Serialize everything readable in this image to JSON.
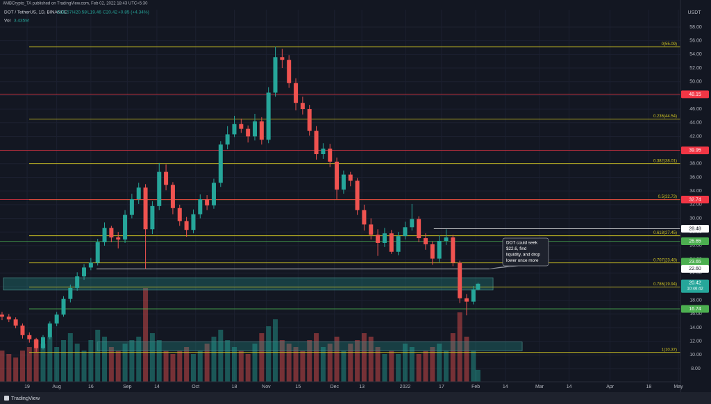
{
  "header": {
    "published": "AMBCrypto_TA published on TradingView.com, Feb 02, 2022 18:43 UTC+5:30",
    "symbol": "DOT / TetherUS, 1D, BINANCE",
    "ohlc_labels": [
      "O19.57",
      "H20.58",
      "L19.46",
      "C20.42"
    ],
    "change": "+0.85 (+4.34%)",
    "volume_name": "Vol",
    "currency": "USDT"
  },
  "chart_data": {
    "type": "candlestick",
    "up_color": "#26a69a",
    "down_color": "#ef5350",
    "x": [
      -11,
      -8,
      -5,
      -2,
      1,
      4,
      7,
      10,
      13,
      16,
      19,
      22,
      25,
      28,
      31,
      34,
      37,
      40,
      43,
      46,
      49,
      52,
      55,
      58,
      61,
      64,
      67,
      70,
      73,
      76,
      79,
      82,
      85,
      88,
      91,
      94,
      97,
      100,
      103,
      106,
      109,
      112,
      115,
      118,
      121,
      124,
      127,
      130,
      133,
      136,
      139,
      142,
      145,
      148,
      151,
      154,
      157,
      160,
      163,
      166,
      169,
      172,
      175,
      178,
      181,
      184,
      187,
      190,
      193,
      196,
      198
    ],
    "open": [
      15.9,
      15.6,
      15.2,
      14.3,
      12.9,
      12.3,
      11.0,
      12.6,
      14.6,
      15.9,
      18.2,
      19.8,
      21.5,
      22.8,
      23.5,
      26.5,
      28.6,
      27.2,
      26.9,
      30.5,
      32.8,
      34.5,
      28.4,
      31.8,
      36.8,
      34.9,
      31.5,
      29.6,
      28.3,
      30.6,
      32.8,
      31.9,
      35.2,
      40.8,
      42.3,
      43.8,
      43.1,
      42.0,
      44.2,
      41.5,
      48.4,
      53.6,
      53.2,
      49.8,
      46.9,
      46.0,
      42.8,
      39.4,
      40.2,
      38.3,
      34.2,
      36.4,
      35.5,
      31.2,
      29.1,
      27.6,
      26.4,
      27.8,
      25.1,
      27.4,
      28.7,
      29.9,
      27.1,
      26.2,
      24.1,
      26.7,
      27.2,
      23.5,
      18.3,
      17.8,
      19.57
    ],
    "high": [
      16.3,
      16.0,
      15.5,
      14.6,
      13.3,
      12.5,
      12.9,
      14.9,
      16.3,
      18.6,
      20.3,
      22.1,
      23.3,
      24.2,
      27.0,
      29.4,
      28.9,
      28.0,
      31.2,
      33.6,
      35.2,
      35.0,
      32.5,
      38.1,
      37.9,
      35.3,
      32.0,
      30.2,
      31.3,
      33.5,
      33.4,
      35.8,
      41.3,
      43.5,
      45.0,
      44.6,
      43.6,
      45.3,
      44.8,
      49.2,
      55.1,
      54.8,
      53.9,
      50.5,
      47.8,
      46.6,
      43.5,
      41.0,
      40.9,
      38.9,
      37.0,
      36.8,
      35.9,
      32.0,
      30.0,
      28.4,
      28.6,
      28.3,
      28.0,
      29.5,
      32.1,
      30.3,
      27.8,
      26.6,
      27.5,
      28.4,
      27.6,
      23.8,
      18.9,
      20.1,
      20.58
    ],
    "low": [
      15.1,
      14.8,
      13.9,
      12.4,
      11.8,
      10.4,
      10.8,
      12.3,
      14.2,
      15.6,
      17.7,
      19.4,
      21.0,
      22.4,
      23.1,
      26.0,
      26.5,
      25.6,
      26.4,
      30.0,
      32.1,
      22.6,
      27.7,
      31.2,
      34.1,
      30.6,
      28.9,
      27.3,
      27.8,
      30.0,
      31.2,
      31.4,
      34.6,
      40.1,
      41.9,
      42.5,
      41.1,
      41.4,
      40.8,
      41.0,
      47.8,
      52.0,
      49.1,
      45.8,
      45.2,
      42.1,
      38.6,
      38.7,
      37.5,
      32.8,
      33.6,
      34.7,
      30.5,
      28.2,
      26.9,
      24.5,
      25.8,
      24.8,
      24.6,
      26.9,
      28.2,
      26.5,
      25.4,
      23.2,
      23.6,
      26.1,
      23.0,
      17.6,
      15.8,
      17.4,
      19.46
    ],
    "close": [
      15.6,
      15.2,
      14.3,
      12.9,
      12.3,
      11.0,
      12.6,
      14.6,
      15.9,
      18.2,
      19.8,
      21.5,
      22.8,
      23.5,
      26.5,
      28.6,
      27.2,
      26.9,
      30.5,
      32.8,
      34.5,
      28.4,
      31.8,
      36.8,
      34.9,
      31.5,
      29.6,
      28.3,
      30.6,
      32.8,
      31.9,
      35.2,
      40.8,
      42.3,
      43.8,
      43.1,
      42.0,
      44.2,
      41.5,
      48.4,
      53.6,
      53.2,
      49.8,
      46.9,
      46.0,
      42.8,
      39.4,
      40.2,
      38.3,
      34.2,
      36.4,
      35.5,
      31.2,
      29.1,
      27.6,
      26.4,
      27.8,
      25.1,
      27.4,
      28.7,
      29.9,
      27.1,
      26.2,
      24.1,
      26.7,
      27.2,
      23.5,
      18.3,
      17.8,
      19.6,
      20.42
    ],
    "volume": [
      9,
      8,
      7,
      9,
      10,
      12,
      11,
      13,
      10,
      12,
      14,
      11,
      9,
      12,
      15,
      13,
      10,
      9,
      11,
      12,
      13,
      27,
      14,
      12,
      9,
      8,
      9,
      10,
      8,
      9,
      11,
      13,
      15,
      12,
      10,
      9,
      8,
      11,
      14,
      16,
      18,
      12,
      11,
      10,
      9,
      12,
      14,
      10,
      11,
      13,
      9,
      11,
      12,
      14,
      13,
      10,
      8,
      9,
      8,
      11,
      10,
      8,
      9,
      10,
      11,
      9,
      14,
      20,
      13,
      9,
      3.435
    ],
    "volume_label": "3.435M",
    "volume_lim": [
      0,
      30
    ],
    "last_label": "20.42",
    "countdown": "10:46:42",
    "xlim": [
      -11.9,
      286.9
    ],
    "ylim": [
      6.07,
      60.54
    ],
    "xticks": [
      {
        "value": 0,
        "label": "19"
      },
      {
        "value": 13,
        "label": "Aug"
      },
      {
        "value": 28,
        "label": "16"
      },
      {
        "value": 44,
        "label": "Sep"
      },
      {
        "value": 57,
        "label": "14"
      },
      {
        "value": 74,
        "label": "Oct"
      },
      {
        "value": 91,
        "label": "18"
      },
      {
        "value": 105,
        "label": "Nov"
      },
      {
        "value": 119,
        "label": "15"
      },
      {
        "value": 135,
        "label": "Dec"
      },
      {
        "value": 147,
        "label": "13"
      },
      {
        "value": 166,
        "label": "2022"
      },
      {
        "value": 182,
        "label": "17"
      },
      {
        "value": 197,
        "label": "Feb"
      },
      {
        "value": 210,
        "label": "14"
      },
      {
        "value": 225,
        "label": "Mar"
      },
      {
        "value": 238,
        "label": "14"
      },
      {
        "value": 256,
        "label": "Apr"
      },
      {
        "value": 273,
        "label": "18"
      },
      {
        "value": 286,
        "label": "May"
      }
    ],
    "yticks": [
      {
        "value": 58,
        "label": "58.00"
      },
      {
        "value": 56,
        "label": "56.00"
      },
      {
        "value": 54,
        "label": "54.00"
      },
      {
        "value": 52,
        "label": "52.00"
      },
      {
        "value": 50,
        "label": "50.00"
      },
      {
        "value": 48,
        "label": "48.00"
      },
      {
        "value": 46,
        "label": "46.00"
      },
      {
        "value": 44,
        "label": "44.00"
      },
      {
        "value": 42,
        "label": "42.00"
      },
      {
        "value": 40,
        "label": "40.00"
      },
      {
        "value": 38,
        "label": "38.00"
      },
      {
        "value": 36,
        "label": "36.00"
      },
      {
        "value": 34,
        "label": "34.00"
      },
      {
        "value": 32,
        "label": "32.00"
      },
      {
        "value": 30,
        "label": "30.00"
      },
      {
        "value": 28,
        "label": "28.00"
      },
      {
        "value": 26,
        "label": "26.00"
      },
      {
        "value": 24,
        "label": "24.00"
      },
      {
        "value": 22,
        "label": "22.00"
      },
      {
        "value": 20,
        "label": "20.00"
      },
      {
        "value": 18,
        "label": "18.00"
      },
      {
        "value": 16,
        "label": "16.00"
      },
      {
        "value": 14,
        "label": "14.00"
      },
      {
        "value": 12,
        "label": "12.00"
      },
      {
        "value": 10,
        "label": "10.00"
      },
      {
        "value": 8,
        "label": "8.00"
      }
    ],
    "grid": true,
    "fib_color": "#cfc322",
    "fib": [
      {
        "value": 55.09,
        "label": "0(55.09)"
      },
      {
        "value": 44.54,
        "label": "0.236(44.54)"
      },
      {
        "value": 38.01,
        "label": "0.382(38.01)"
      },
      {
        "value": 32.73,
        "label": "0.5(32.73)"
      },
      {
        "value": 27.45,
        "label": "0.618(27.45)"
      },
      {
        "value": 23.48,
        "label": "0.707(23.48)"
      },
      {
        "value": 19.94,
        "label": "0.786(19.94)"
      },
      {
        "value": 10.37,
        "label": "1(10.37)"
      }
    ],
    "fib_from": 0.9,
    "levels": [
      {
        "value": 48.15,
        "label": "48.15",
        "color": "#f23645",
        "from": -11.9,
        "to": 286.9
      },
      {
        "value": 39.95,
        "label": "39.95",
        "color": "#f23645",
        "from": -11.9,
        "to": 286.9
      },
      {
        "value": 32.74,
        "label": "32.74",
        "color": "#f23645",
        "from": -11.9,
        "to": 286.9
      },
      {
        "value": 28.48,
        "label": "28.48",
        "color": "#ffffff",
        "from": 178.6,
        "to": 286.9
      },
      {
        "value": 26.65,
        "label": "26.65",
        "color": "#4caf50",
        "from": -11.9,
        "to": 286.9
      },
      {
        "value": 23.65,
        "label": "23.65",
        "color": "#4caf50",
        "from": 286.9,
        "to": 286.9
      },
      {
        "value": 22.6,
        "label": "22.60",
        "color": "#ffffff",
        "from": 30.5,
        "to": 203
      },
      {
        "value": 16.74,
        "label": "16.74",
        "color": "#4caf50",
        "from": 0.9,
        "to": 286.9
      }
    ],
    "zones": [
      {
        "low": 19.5,
        "high": 21.3,
        "from": -10.4,
        "to": 204.6
      },
      {
        "low": 10.6,
        "high": 11.9,
        "from": 30.8,
        "to": 217.4
      }
    ],
    "callout": {
      "lines": [
        "DOT could seek",
        "$22.6, find",
        "liquidity, and drop",
        "lower once more"
      ]
    }
  },
  "footer": {
    "brand": "TradingView"
  }
}
